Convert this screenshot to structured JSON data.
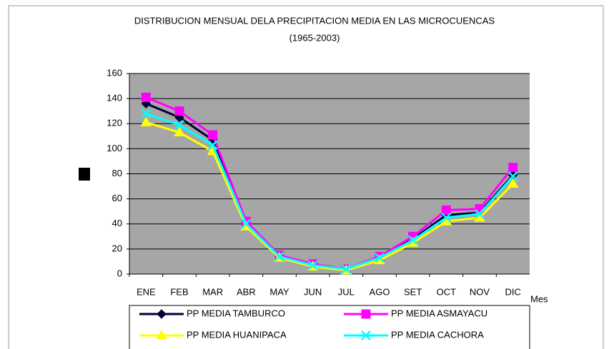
{
  "chart_data": {
    "type": "line",
    "title": "DISTRIBUCION MENSUAL DELA PRECIPITACION MEDIA EN LAS MICROCUENCAS",
    "subtitle": "(1965-2003)",
    "x_label": "Mes",
    "categories": [
      "ENE",
      "FEB",
      "MAR",
      "ABR",
      "MAY",
      "JUN",
      "JUL",
      "AGO",
      "SET",
      "OCT",
      "NOV",
      "DIC"
    ],
    "series": [
      {
        "name": "PP MEDIA TAMBURCO",
        "color": "#000033",
        "marker": "diamond",
        "values": [
          136,
          125,
          107,
          42,
          14,
          7,
          4,
          13,
          28,
          47,
          49,
          79
        ]
      },
      {
        "name": "PP MEDIA ASMAYACU",
        "color": "#ff00ff",
        "marker": "square",
        "values": [
          141,
          130,
          111,
          42,
          15,
          8,
          4,
          14,
          30,
          51,
          52,
          85
        ]
      },
      {
        "name": "PP MEDIA HUANIPACA",
        "color": "#ffff00",
        "marker": "triangle",
        "values": [
          121,
          113,
          98,
          38,
          13,
          6,
          3,
          11,
          25,
          42,
          45,
          72
        ]
      },
      {
        "name": "PP MEDIA CACHORA",
        "color": "#00ffff",
        "marker": "x",
        "values": [
          128,
          119,
          103,
          40,
          14,
          7,
          4,
          13,
          27,
          45,
          48,
          78
        ]
      }
    ],
    "ylim": [
      0,
      160
    ],
    "yticks": [
      0,
      20,
      40,
      60,
      80,
      100,
      120,
      140,
      160
    ],
    "grid": true,
    "legend": "bottom"
  }
}
